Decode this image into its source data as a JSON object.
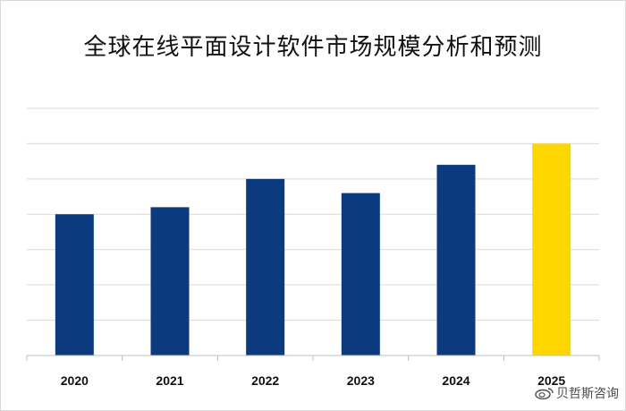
{
  "title": "全球在线平面设计软件市场规模分析和预测",
  "watermark": "贝哲斯咨询",
  "colors": {
    "bar": "#0b3a7e",
    "highlight": "#ffd700",
    "grid": "#d9d9d9",
    "axis": "#bfbfbf"
  },
  "chart_data": {
    "type": "bar",
    "title": "全球在线平面设计软件市场规模分析和预测",
    "xlabel": "",
    "ylabel": "",
    "categories": [
      "2020",
      "2021",
      "2022",
      "2023",
      "2024",
      "2025"
    ],
    "values": [
      4.0,
      4.2,
      5.0,
      4.6,
      5.4,
      6.0
    ],
    "highlight_category": "2025",
    "ylim": [
      0,
      7
    ],
    "grid": true,
    "legend": "none"
  }
}
